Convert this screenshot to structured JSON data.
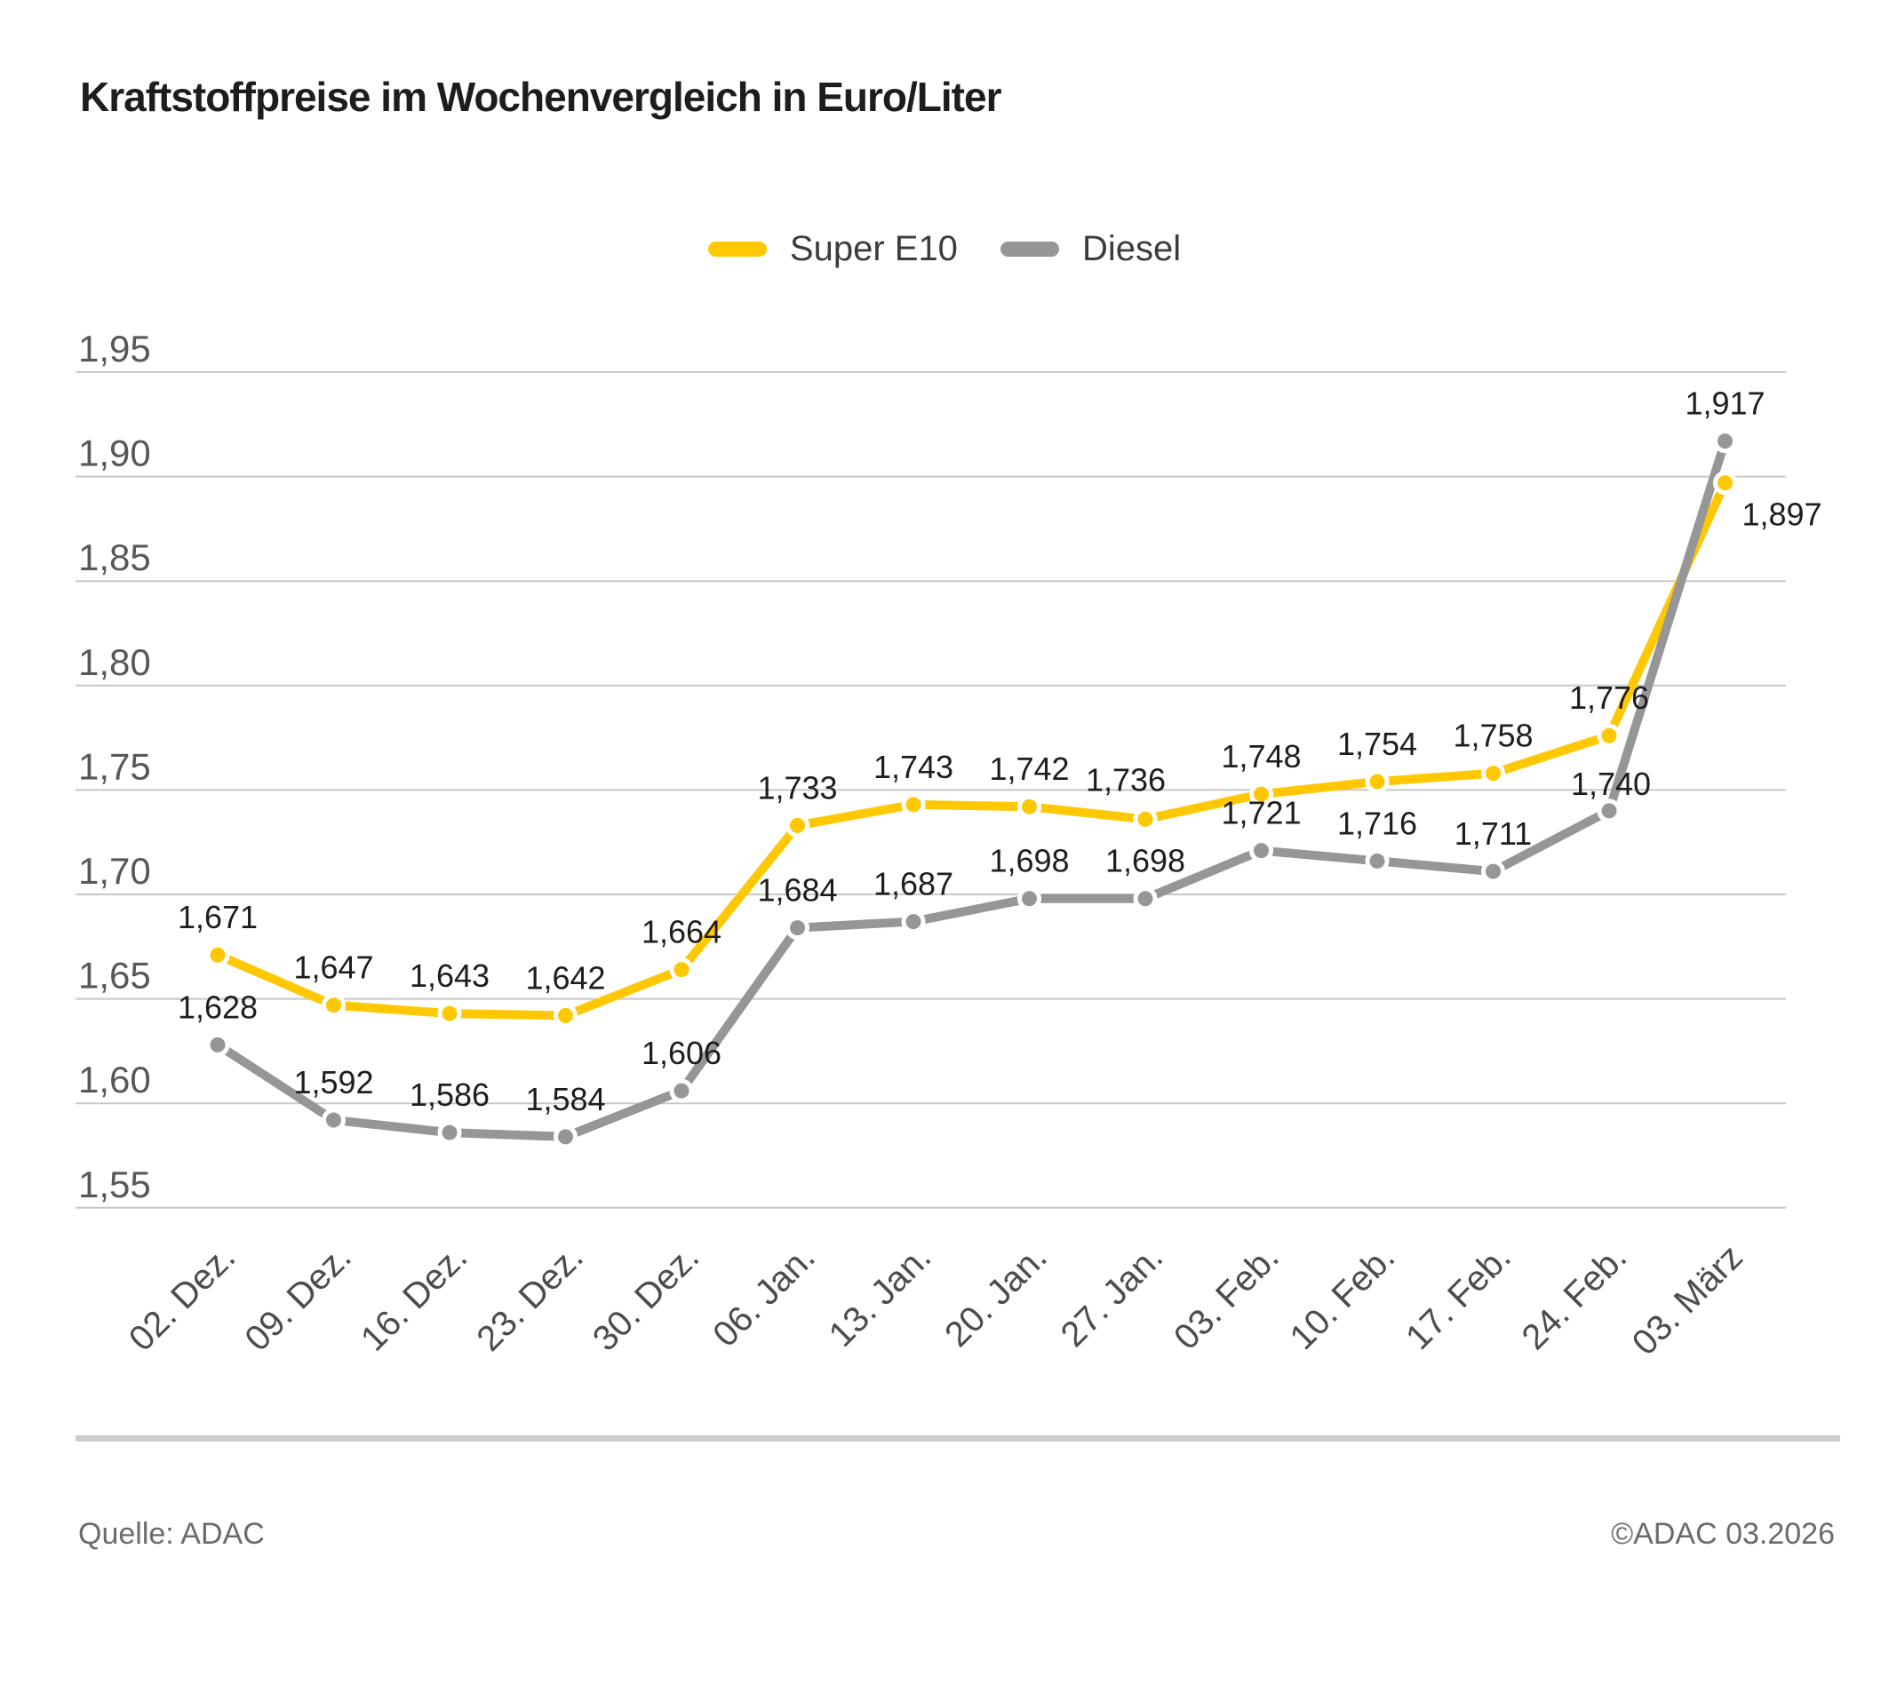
{
  "page": {
    "title": "Kraftstoffpreise im Wochenvergleich in Euro/Liter"
  },
  "legend": {
    "items": [
      {
        "label": "Super E10",
        "color": "#FFC803"
      },
      {
        "label": "Diesel",
        "color": "#969696"
      }
    ]
  },
  "footer": {
    "source": "Quelle: ADAC",
    "copyright": "©ADAC 03.2026"
  },
  "chart_data": {
    "type": "line",
    "title": "Kraftstoffpreise im Wochenvergleich in Euro/Liter",
    "categories": [
      "02. Dez.",
      "09. Dez.",
      "16. Dez.",
      "23. Dez.",
      "30. Dez.",
      "06. Jan.",
      "13. Jan.",
      "20. Jan.",
      "27. Jan.",
      "03. Feb.",
      "10. Feb.",
      "17. Feb.",
      "24. Feb.",
      "03. März"
    ],
    "series": [
      {
        "name": "Super E10",
        "color": "#FFC803",
        "values": [
          1.671,
          1.647,
          1.643,
          1.642,
          1.664,
          1.733,
          1.743,
          1.742,
          1.736,
          1.748,
          1.754,
          1.758,
          1.776,
          1.897
        ],
        "label_offsets": {
          "8": [
            -22,
            -2
          ],
          "13": [
            64,
            78
          ]
        }
      },
      {
        "name": "Diesel",
        "color": "#969696",
        "values": [
          1.628,
          1.592,
          1.586,
          1.584,
          1.606,
          1.684,
          1.687,
          1.698,
          1.698,
          1.721,
          1.716,
          1.711,
          1.74,
          1.917
        ],
        "label_offsets": {
          "12": [
            2,
            12
          ]
        }
      }
    ],
    "ylim": [
      1.55,
      1.95
    ],
    "ytick_step": 0.05,
    "ytick_labels": [
      "1,95",
      "1,90",
      "1,85",
      "1,80",
      "1,75",
      "1,70",
      "1,65",
      "1,60",
      "1,55"
    ],
    "xlabel": "",
    "ylabel": "",
    "grid": true,
    "legend_position": "top-center",
    "decimal_separator": ",",
    "value_labels": true,
    "colors": {
      "gridline": "#C8C8C8",
      "axis_text": "#58585A",
      "value_label_text": "#1D1D1B"
    }
  }
}
